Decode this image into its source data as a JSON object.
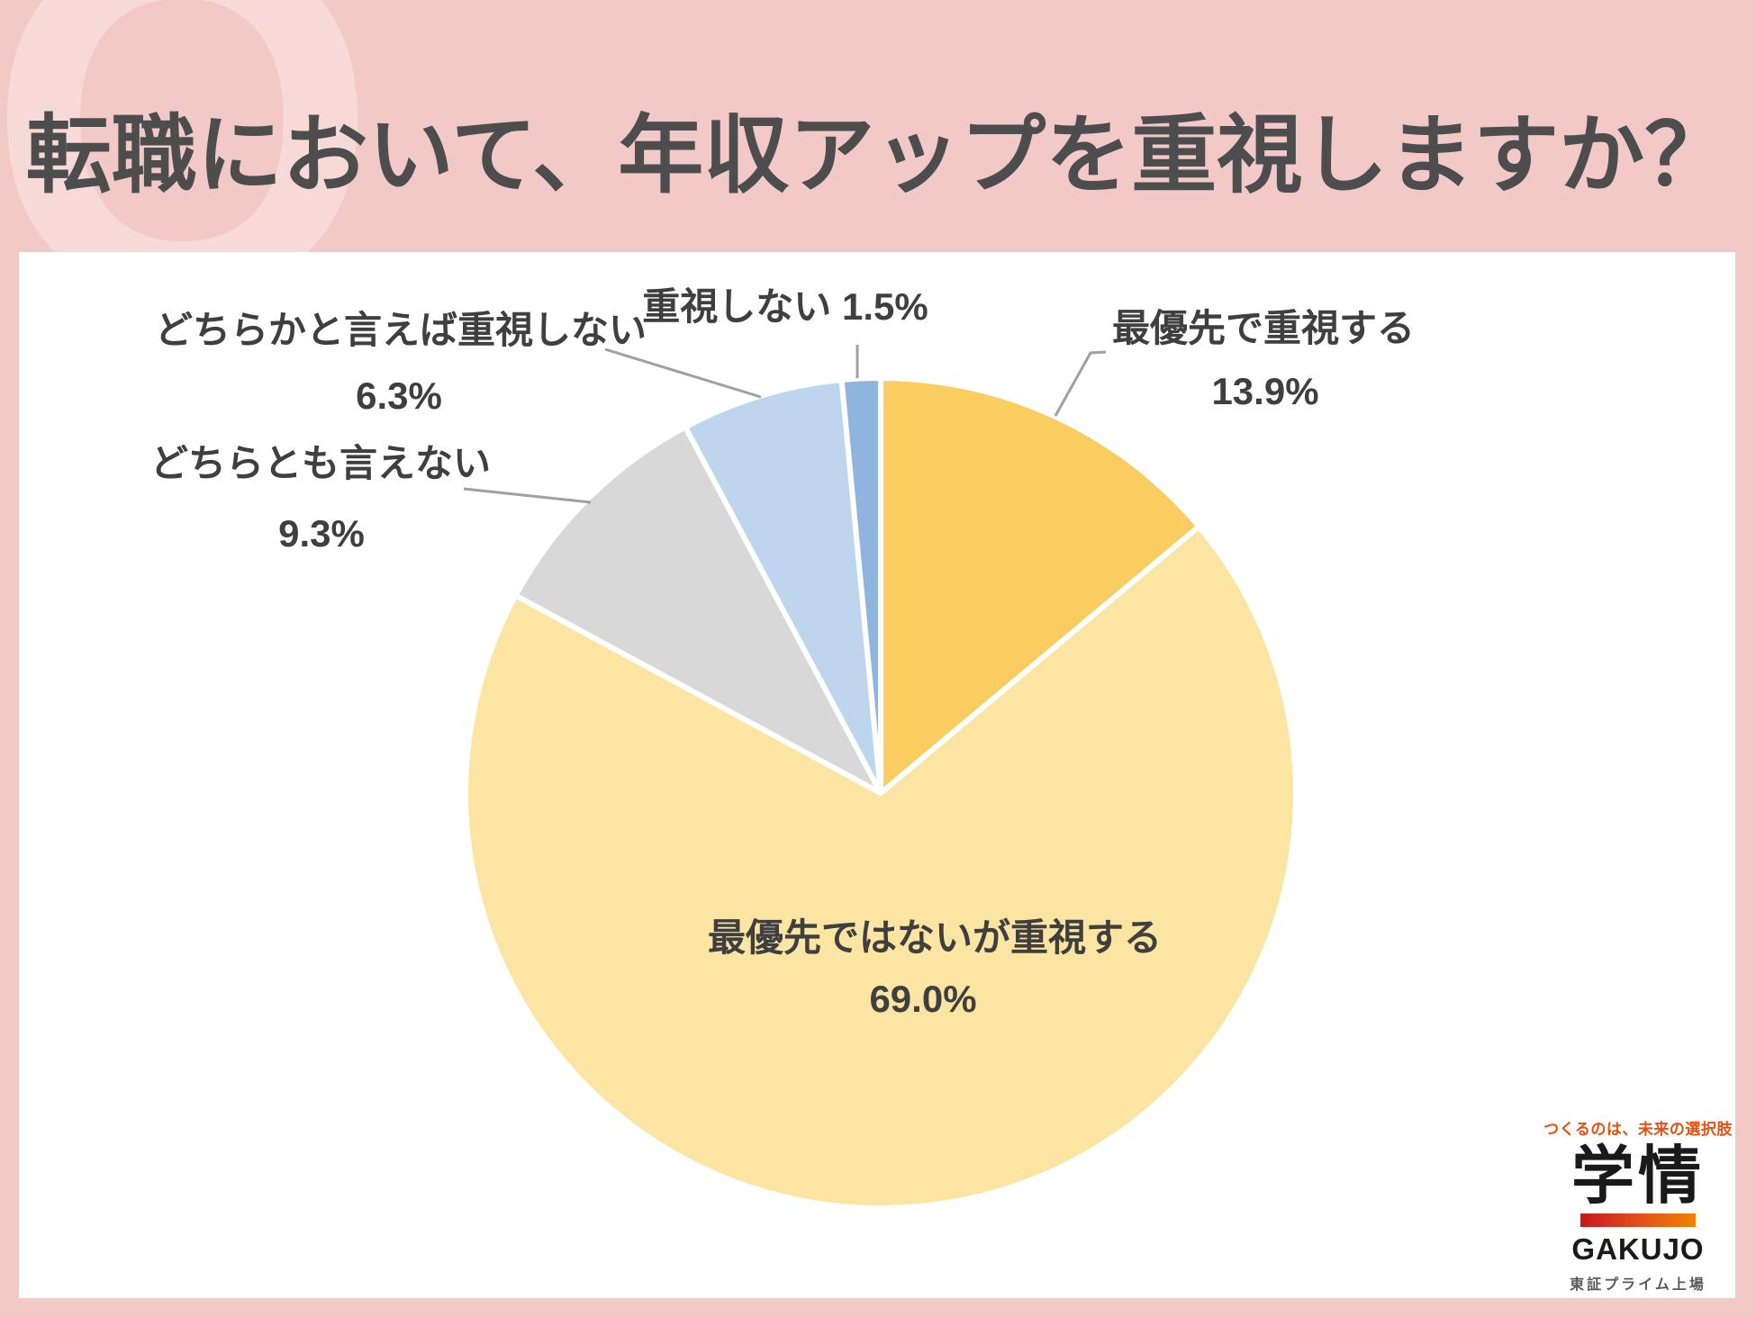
{
  "header": {
    "watermark": "Q",
    "title": "転職において、年収アップを重視しますか？"
  },
  "chart_data": {
    "type": "pie",
    "unit": "%",
    "start_angle_deg": 0,
    "direction": "clockwise",
    "legend_position": "none",
    "segments": [
      {
        "label": "最優先で重視する",
        "value": 13.9,
        "pct_label": "13.9%",
        "color": "#F9CD60"
      },
      {
        "label": "最優先ではないが重視する",
        "value": 69.0,
        "pct_label": "69.0%",
        "color": "#FCE4A2"
      },
      {
        "label": "どちらとも言えない",
        "value": 9.3,
        "pct_label": "9.3%",
        "color": "#D8D8D8"
      },
      {
        "label": "どちらかと言えば重視しない",
        "value": 6.3,
        "pct_label": "6.3%",
        "color": "#BDD6EE"
      },
      {
        "label": "重視しない",
        "value": 1.5,
        "pct_label": "1.5%",
        "color": "#8FB5DE"
      }
    ]
  },
  "logo": {
    "tagline": "つくるのは、未来の選択肢",
    "brand_kanji": "学情",
    "brand_latin": "GAKUJO",
    "listing": "東証プライム上場"
  },
  "colors": {
    "background_pink": "#F2C9C7",
    "watermark_pink": "#F7D9D8",
    "title_gray": "#4D4D4D",
    "label_gray": "#3F3F3F",
    "leader_line_gray": "#A0A0A0",
    "panel_white": "#FFFFFF"
  }
}
